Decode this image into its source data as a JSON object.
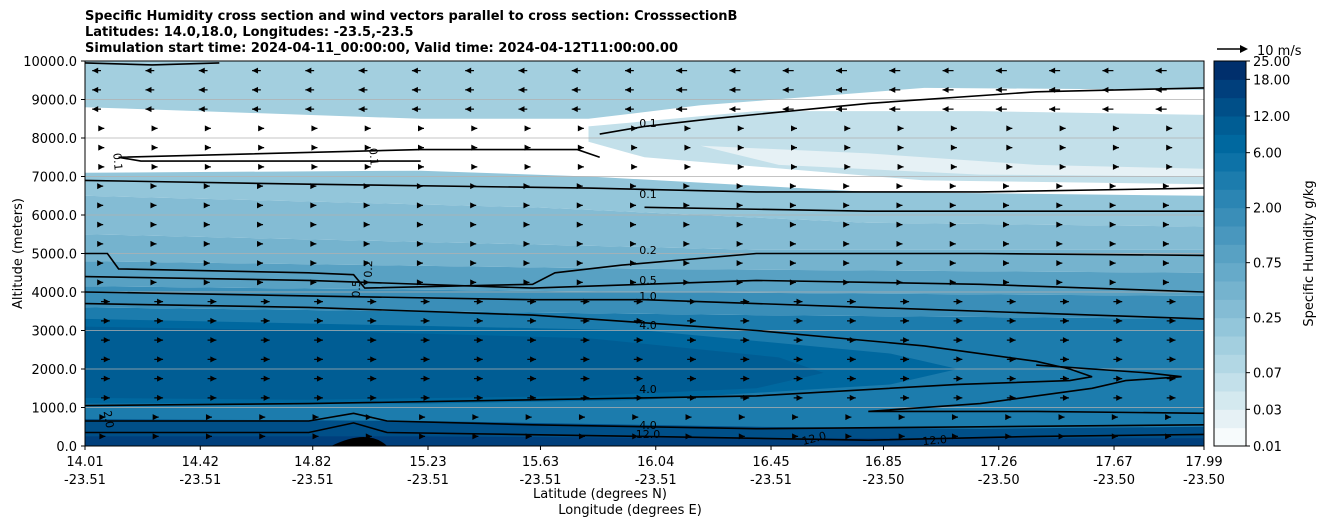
{
  "chart_data": {
    "type": "heatmap",
    "title": [
      "Specific Humidity cross section and wind vectors parallel to cross section: CrosssectionB",
      "Latitudes: 14.0,18.0, Longitudes: -23.5,-23.5",
      "Simulation start time: 2024-04-11_00:00:00, Valid time: 2024-04-12T11:00:00.00"
    ],
    "xlabel": "Latitude (degrees N)",
    "xlabel2": "Longitude (degrees E)",
    "ylabel": "Altitude (meters)",
    "xlim": [
      14.01,
      17.99
    ],
    "ylim": [
      0,
      10000
    ],
    "x_ticks": [
      {
        "lat": "14.01",
        "lon": "-23.51"
      },
      {
        "lat": "14.42",
        "lon": "-23.51"
      },
      {
        "lat": "14.82",
        "lon": "-23.51"
      },
      {
        "lat": "15.23",
        "lon": "-23.51"
      },
      {
        "lat": "15.63",
        "lon": "-23.51"
      },
      {
        "lat": "16.04",
        "lon": "-23.51"
      },
      {
        "lat": "16.45",
        "lon": "-23.51"
      },
      {
        "lat": "16.85",
        "lon": "-23.50"
      },
      {
        "lat": "17.26",
        "lon": "-23.50"
      },
      {
        "lat": "17.67",
        "lon": "-23.50"
      },
      {
        "lat": "17.99",
        "lon": "-23.50"
      }
    ],
    "y_ticks": [
      "0.0",
      "1000.0",
      "2000.0",
      "3000.0",
      "4000.0",
      "5000.0",
      "6000.0",
      "7000.0",
      "8000.0",
      "9000.0",
      "10000.0"
    ],
    "colorbar": {
      "label": "Specific Humidity g/kg",
      "tick_labels": [
        "0.01",
        "0.03",
        "0.07",
        "0.25",
        "0.75",
        "2.00",
        "6.00",
        "12.00",
        "18.00",
        "25.00"
      ],
      "levels": [
        0.01,
        0.02,
        0.03,
        0.05,
        0.07,
        0.1,
        0.15,
        0.25,
        0.35,
        0.5,
        0.75,
        1,
        1.5,
        2,
        3,
        4,
        6,
        8,
        12,
        15,
        18,
        25
      ],
      "colors": [
        "#f7fbfc",
        "#e6f1f5",
        "#d4e9ef",
        "#c3e0ea",
        "#b2d7e4",
        "#a3cfdf",
        "#93c6da",
        "#84bcd4",
        "#75b3ce",
        "#66aac9",
        "#58a1c3",
        "#4997be",
        "#3a8eb8",
        "#2b85b3",
        "#1c7cad",
        "#0d72a7",
        "#00689f",
        "#005d94",
        "#004f88",
        "#003f7c",
        "#002f6c"
      ]
    },
    "contour_labels": [
      "0.1",
      "0.1",
      "0.1",
      "0.1",
      "0.2",
      "0.2",
      "0.5",
      "0.5",
      "1.0",
      "4.0",
      "4.0",
      "4.0",
      "2.0",
      "12.0",
      "12.0",
      "12.0"
    ],
    "vector_key": {
      "label": "10 m/s"
    },
    "grid": true
  }
}
